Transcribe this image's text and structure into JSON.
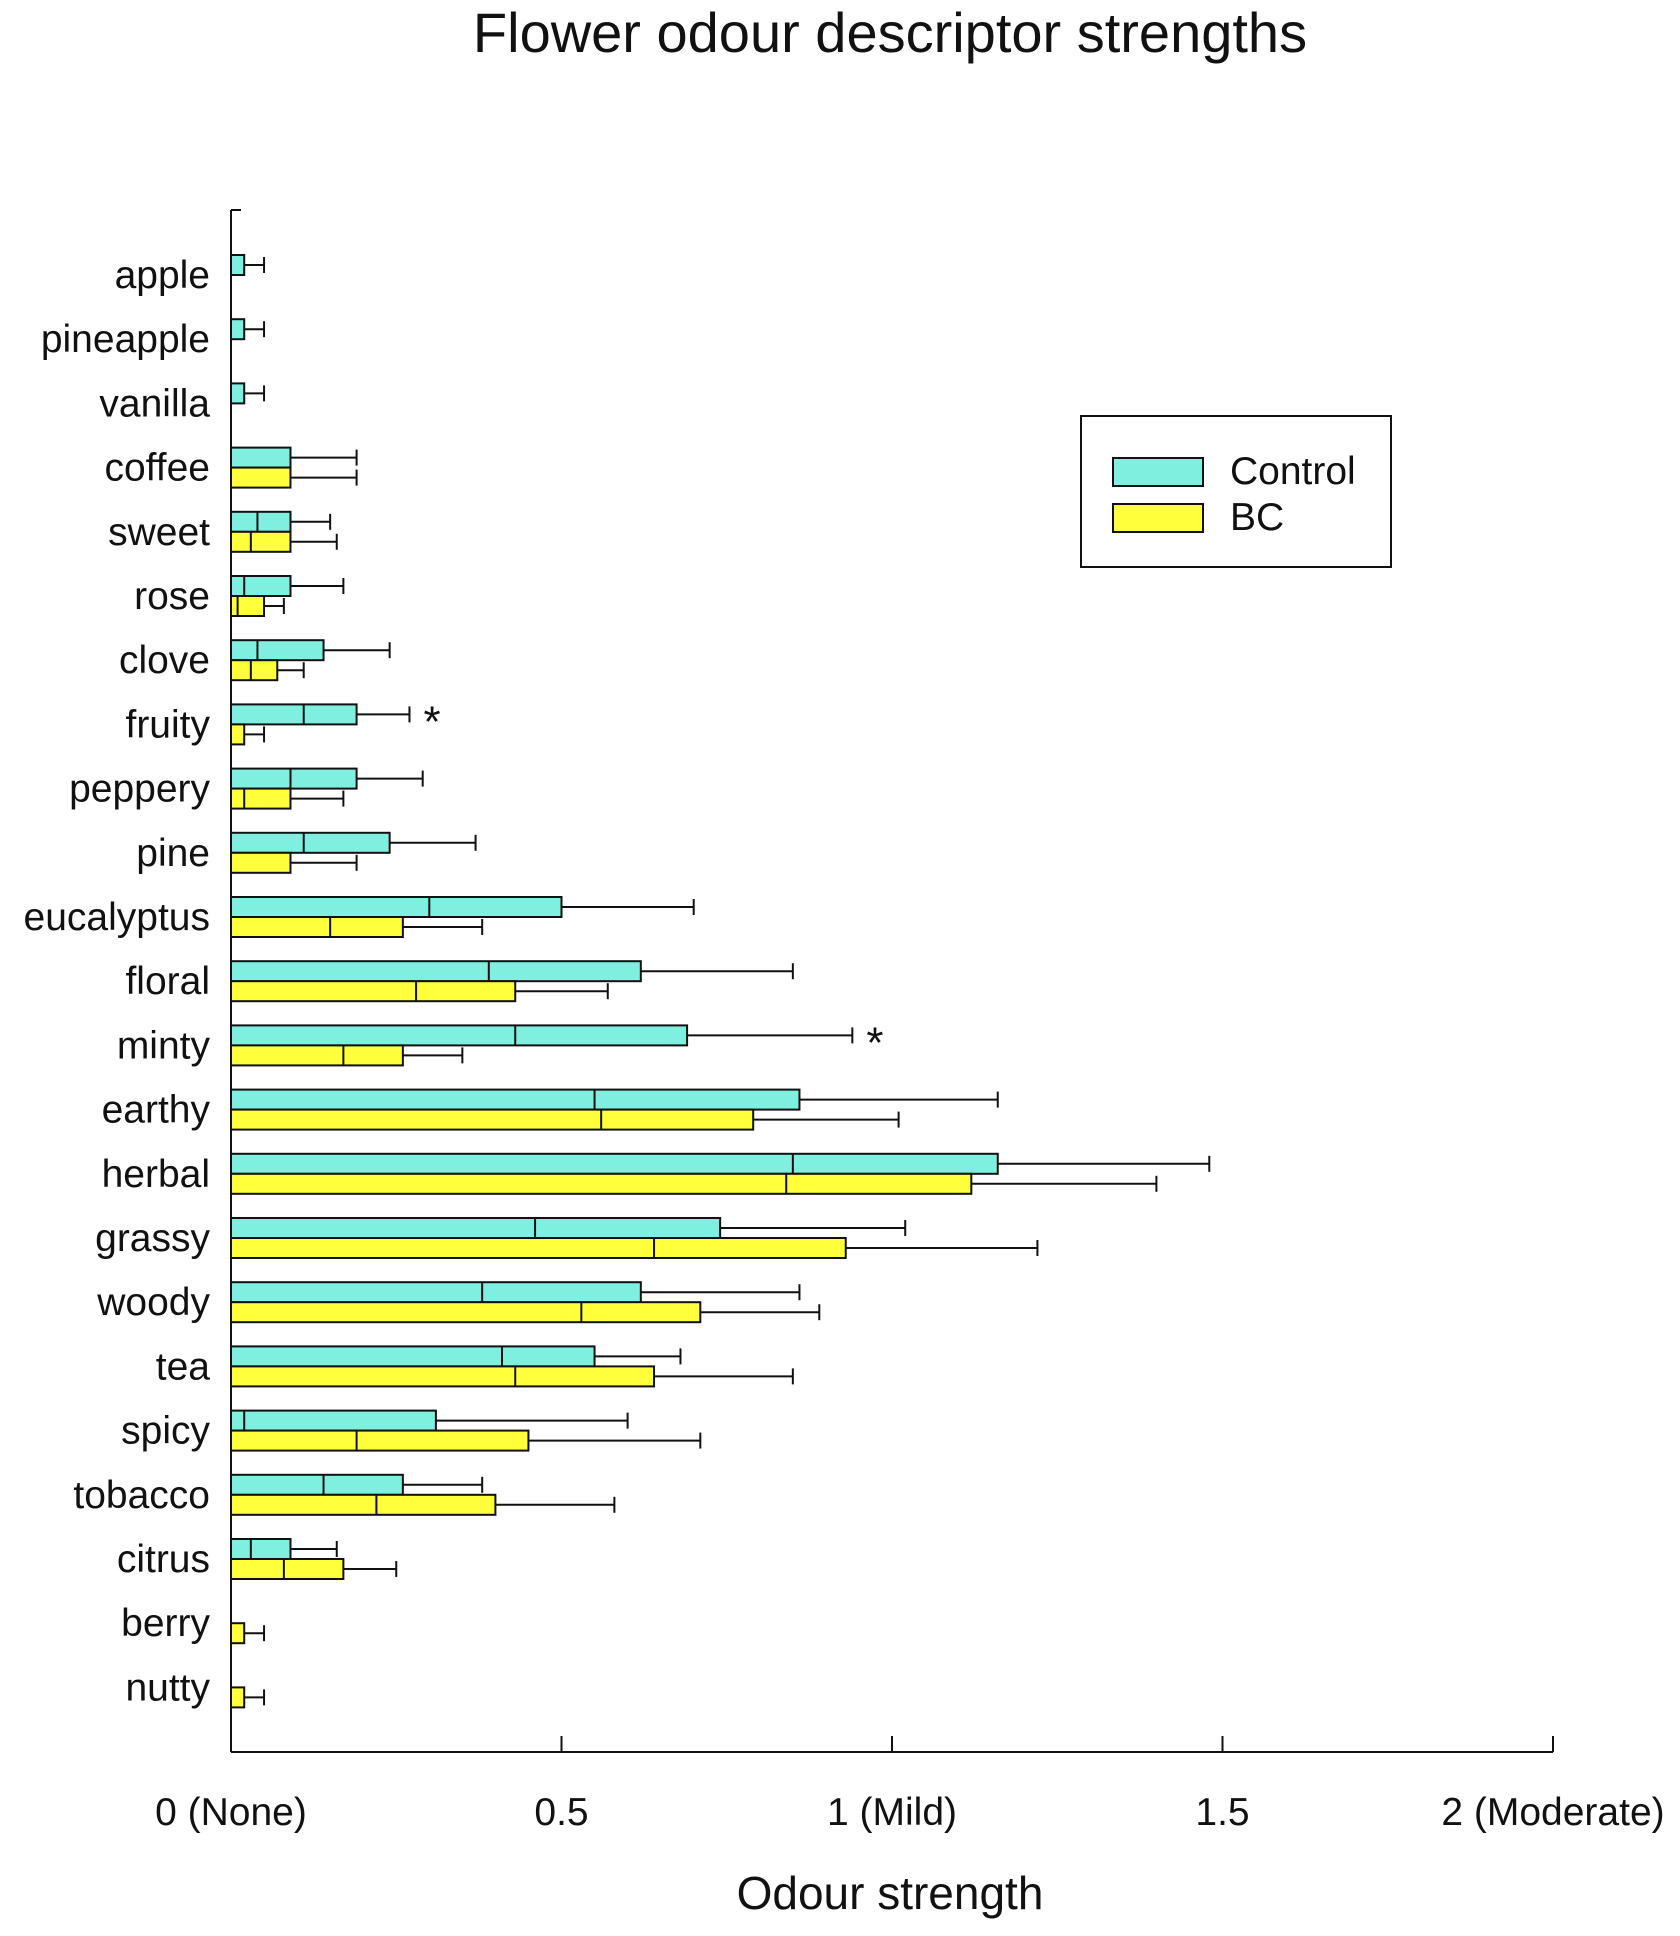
{
  "chart_data": {
    "type": "bar",
    "orientation": "horizontal",
    "title": "Flower odour descriptor strengths",
    "xlabel": "Odour strength",
    "ylabel": "",
    "xlim": [
      0,
      2
    ],
    "ticks": [
      {
        "value": 0,
        "label": "0 (None)"
      },
      {
        "value": 0.5,
        "label": "0.5"
      },
      {
        "value": 1,
        "label": "1 (Mild)"
      },
      {
        "value": 1.5,
        "label": "1.5"
      },
      {
        "value": 2,
        "label": "2 (Moderate)"
      }
    ],
    "categories": [
      "apple",
      "pineapple",
      "vanilla",
      "coffee",
      "sweet",
      "rose",
      "clove",
      "fruity",
      "peppery",
      "pine",
      "eucalyptus",
      "floral",
      "minty",
      "earthy",
      "herbal",
      "grassy",
      "woody",
      "tea",
      "spicy",
      "tobacco",
      "citrus",
      "berry",
      "nutty"
    ],
    "series": [
      {
        "name": "Control",
        "color": "#7ff0df",
        "values": [
          0.02,
          0.02,
          0.02,
          0.09,
          0.09,
          0.09,
          0.14,
          0.19,
          0.19,
          0.24,
          0.5,
          0.62,
          0.69,
          0.86,
          1.16,
          0.74,
          0.62,
          0.55,
          0.31,
          0.26,
          0.09,
          0,
          0
        ],
        "inner": [
          0,
          0,
          0,
          0.09,
          0.04,
          0.02,
          0.04,
          0.11,
          0.09,
          0.11,
          0.3,
          0.39,
          0.43,
          0.55,
          0.85,
          0.46,
          0.38,
          0.41,
          0.02,
          0.14,
          0.03,
          0,
          0
        ],
        "error": [
          0.05,
          0.05,
          0.05,
          0.19,
          0.15,
          0.17,
          0.24,
          0.27,
          0.29,
          0.37,
          0.7,
          0.85,
          0.94,
          1.16,
          1.48,
          1.02,
          0.86,
          0.68,
          0.6,
          0.38,
          0.16,
          0,
          0
        ]
      },
      {
        "name": "BC",
        "color": "#ffff3c",
        "values": [
          0,
          0,
          0,
          0.09,
          0.09,
          0.05,
          0.07,
          0.02,
          0.09,
          0.09,
          0.26,
          0.43,
          0.26,
          0.79,
          1.12,
          0.93,
          0.71,
          0.64,
          0.45,
          0.4,
          0.17,
          0.02,
          0.02
        ],
        "inner": [
          0,
          0,
          0,
          0.09,
          0.03,
          0.01,
          0.03,
          0,
          0.02,
          0.09,
          0.15,
          0.28,
          0.17,
          0.56,
          0.84,
          0.64,
          0.53,
          0.43,
          0.19,
          0.22,
          0.08,
          0,
          0
        ],
        "error": [
          0,
          0,
          0,
          0.19,
          0.16,
          0.08,
          0.11,
          0.05,
          0.17,
          0.19,
          0.38,
          0.57,
          0.35,
          1.01,
          1.4,
          1.22,
          0.89,
          0.85,
          0.71,
          0.58,
          0.25,
          0.05,
          0.05
        ]
      }
    ],
    "annotations": [
      {
        "category": "fruity",
        "text": "*"
      },
      {
        "category": "minty",
        "text": "*"
      }
    ],
    "legend": {
      "position": "top-right",
      "entries": [
        "Control",
        "BC"
      ]
    }
  }
}
